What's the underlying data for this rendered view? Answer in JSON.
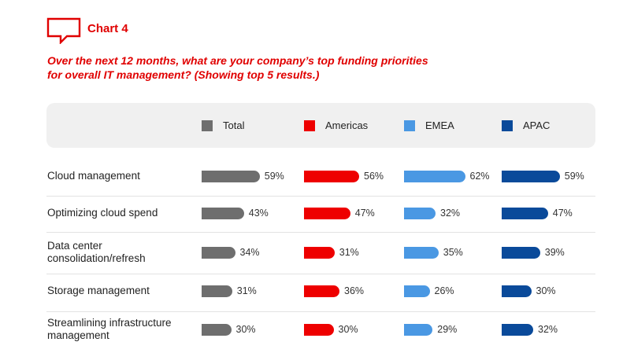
{
  "header": {
    "chart_label": "Chart 4",
    "question_lines": [
      "Over the next 12 months, what are your company’s top funding priorities",
      "for overall IT management? (Showing top 5 results.)"
    ]
  },
  "colors": {
    "accent": "#e00000",
    "Total": "#6e6e6e",
    "Americas": "#ee0000",
    "EMEA": "#4a98e3",
    "APAC": "#0a4a9a"
  },
  "chart_data": {
    "type": "bar",
    "orientation": "horizontal",
    "title": "",
    "xlabel": "",
    "ylabel": "",
    "unit": "%",
    "legend_position": "top",
    "grid": false,
    "categories": [
      [
        "Cloud management"
      ],
      [
        "Optimizing cloud spend"
      ],
      [
        "Data center",
        "consolidation/refresh"
      ],
      [
        "Storage management"
      ],
      [
        "Streamlining infrastructure",
        "management"
      ]
    ],
    "series": [
      {
        "name": "Total",
        "values": [
          59,
          43,
          34,
          31,
          30
        ]
      },
      {
        "name": "Americas",
        "values": [
          56,
          47,
          31,
          36,
          30
        ]
      },
      {
        "name": "EMEA",
        "values": [
          62,
          32,
          35,
          26,
          29
        ]
      },
      {
        "name": "APAC",
        "values": [
          59,
          47,
          39,
          30,
          32
        ]
      }
    ]
  }
}
